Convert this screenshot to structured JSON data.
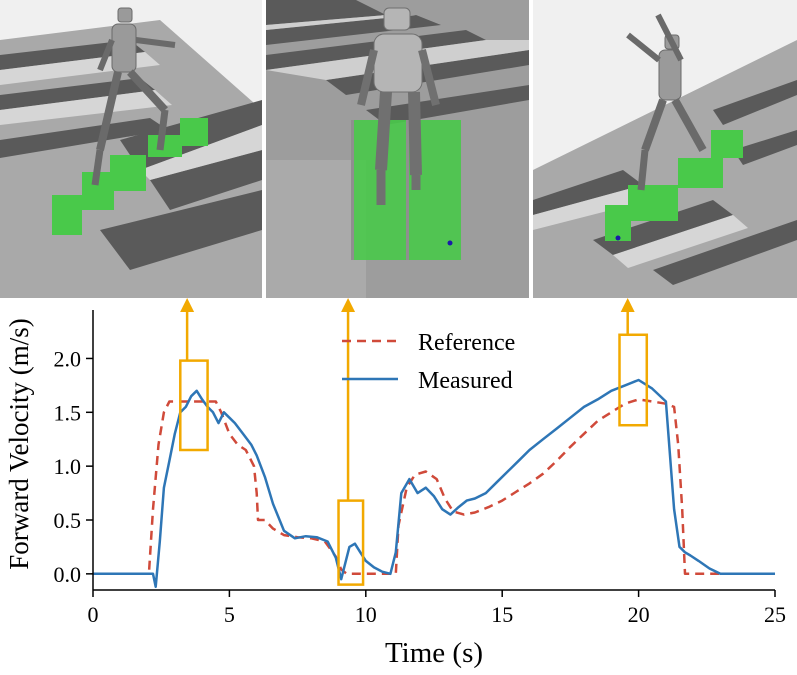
{
  "chart_data": {
    "type": "line",
    "xlabel": "Time (s)",
    "ylabel": "Forward Velocity (m/s)",
    "xlim": [
      0,
      25
    ],
    "ylim": [
      -0.15,
      2.45
    ],
    "xticks": [
      0,
      5,
      10,
      15,
      20,
      25
    ],
    "xtick_labels": [
      "0",
      "5",
      "10",
      "15",
      "20",
      "25"
    ],
    "yticks": [
      0.0,
      0.5,
      1.0,
      1.5,
      2.0
    ],
    "ytick_labels": [
      "0.0",
      "0.5",
      "1.0",
      "1.5",
      "2.0"
    ],
    "legend": {
      "position": "top-center"
    },
    "series": [
      {
        "name": "Reference",
        "style": "dashed",
        "color": "#d04a3a",
        "x": [
          0,
          2.05,
          2.2,
          2.4,
          2.6,
          2.8,
          3.0,
          4.5,
          4.7,
          5.0,
          5.3,
          5.6,
          5.9,
          6.0,
          6.05,
          6.3,
          6.6,
          7.0,
          7.5,
          8.0,
          8.5,
          8.9,
          9.1,
          9.3,
          10.2,
          11.1,
          11.2,
          11.5,
          11.8,
          12.2,
          12.6,
          12.9,
          13.2,
          13.6,
          14.0,
          14.5,
          15.0,
          15.5,
          16.0,
          16.5,
          17.0,
          17.5,
          18.0,
          18.5,
          19.0,
          19.5,
          20.0,
          20.5,
          21.0,
          21.3,
          21.45,
          21.6,
          21.7,
          25
        ],
        "values": [
          0,
          0,
          0.6,
          1.2,
          1.5,
          1.6,
          1.6,
          1.6,
          1.5,
          1.3,
          1.2,
          1.15,
          1.0,
          0.75,
          0.5,
          0.5,
          0.42,
          0.36,
          0.34,
          0.33,
          0.3,
          0.16,
          0.04,
          0.0,
          0.0,
          0.0,
          0.45,
          0.8,
          0.92,
          0.95,
          0.88,
          0.7,
          0.58,
          0.55,
          0.57,
          0.62,
          0.68,
          0.76,
          0.84,
          0.93,
          1.05,
          1.18,
          1.3,
          1.42,
          1.5,
          1.58,
          1.62,
          1.6,
          1.58,
          1.55,
          1.2,
          0.6,
          0.0,
          0.0
        ]
      },
      {
        "name": "Measured",
        "style": "solid",
        "color": "#2e76b6",
        "x": [
          0,
          2.2,
          2.3,
          2.45,
          2.6,
          2.8,
          3.0,
          3.2,
          3.4,
          3.6,
          3.8,
          4.0,
          4.2,
          4.4,
          4.6,
          4.8,
          5.0,
          5.2,
          5.5,
          5.8,
          6.0,
          6.3,
          6.6,
          7.0,
          7.4,
          7.8,
          8.2,
          8.6,
          8.9,
          9.1,
          9.25,
          9.4,
          9.6,
          9.8,
          10.0,
          10.3,
          10.6,
          10.9,
          11.1,
          11.3,
          11.6,
          11.9,
          12.2,
          12.5,
          12.8,
          13.1,
          13.4,
          13.7,
          14.0,
          14.4,
          14.8,
          15.2,
          15.6,
          16.0,
          16.5,
          17.0,
          17.5,
          18.0,
          18.5,
          19.0,
          19.5,
          20.0,
          20.5,
          21.0,
          21.3,
          21.5,
          21.7,
          21.9,
          22.2,
          22.6,
          23.0,
          23.5,
          25
        ],
        "values": [
          0.0,
          0.0,
          -0.12,
          0.3,
          0.8,
          1.05,
          1.3,
          1.5,
          1.55,
          1.65,
          1.7,
          1.62,
          1.55,
          1.5,
          1.4,
          1.5,
          1.45,
          1.4,
          1.3,
          1.2,
          1.1,
          0.9,
          0.65,
          0.4,
          0.33,
          0.35,
          0.34,
          0.3,
          0.15,
          -0.05,
          0.1,
          0.25,
          0.28,
          0.2,
          0.12,
          0.06,
          0.02,
          0.0,
          0.2,
          0.75,
          0.88,
          0.75,
          0.8,
          0.72,
          0.6,
          0.55,
          0.62,
          0.68,
          0.7,
          0.75,
          0.85,
          0.95,
          1.05,
          1.15,
          1.25,
          1.35,
          1.45,
          1.55,
          1.62,
          1.7,
          1.75,
          1.8,
          1.72,
          1.6,
          0.6,
          0.25,
          0.2,
          0.17,
          0.12,
          0.05,
          0.0,
          0.0,
          0.0
        ]
      }
    ],
    "highlight_boxes": [
      {
        "x_range": [
          3.2,
          4.2
        ],
        "y_range": [
          1.15,
          1.98
        ]
      },
      {
        "x_range": [
          9.0,
          9.9
        ],
        "y_range": [
          -0.1,
          0.68
        ]
      },
      {
        "x_range": [
          19.3,
          20.3
        ],
        "y_range": [
          1.38,
          2.22
        ]
      }
    ],
    "arrow_x": [
      3.45,
      9.35,
      19.6
    ],
    "colors": {
      "highlight": "#f2a900",
      "axis": "#000000"
    }
  },
  "images": [
    {
      "label": "simulation-snapshot-1"
    },
    {
      "label": "simulation-snapshot-2"
    },
    {
      "label": "simulation-snapshot-3"
    }
  ]
}
